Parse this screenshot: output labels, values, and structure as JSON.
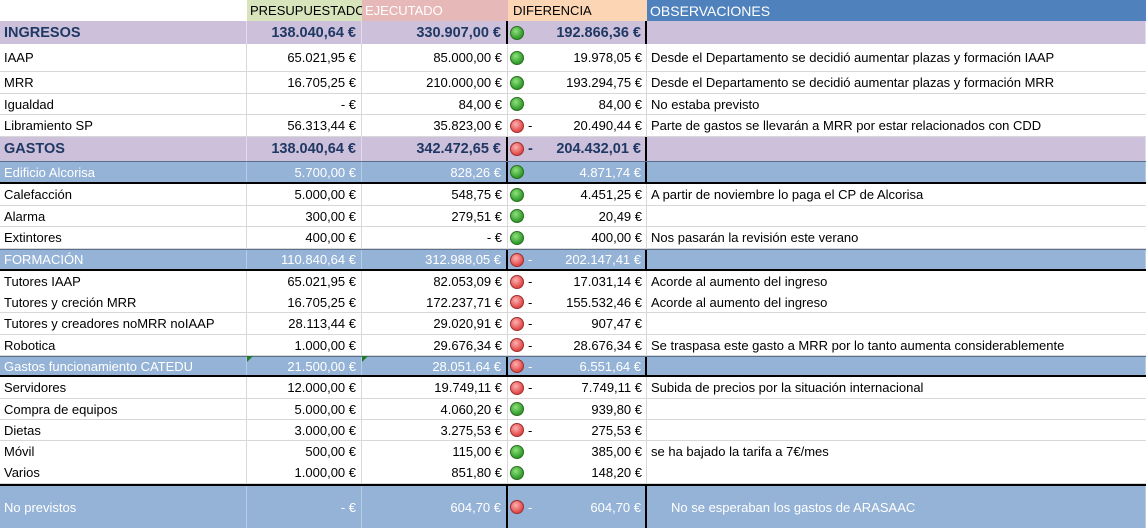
{
  "header": {
    "col_concept": "",
    "col_budget": "PRESUPUESTADO",
    "col_executed": "EJECUTADO",
    "col_difference": "DIFERENCIA",
    "col_notes": "OBSERVACIONES"
  },
  "rows": [
    {
      "type": "section",
      "concept": "INGRESOS",
      "budget": "138.040,64 €",
      "executed": "330.907,00 €",
      "status": "green",
      "sign": "",
      "difference": "192.866,36 €",
      "notes": ""
    },
    {
      "type": "item",
      "concept": "IAAP",
      "budget": "65.021,95 €",
      "executed": "85.000,00 €",
      "status": "green",
      "sign": "",
      "difference": "19.978,05 €",
      "notes": "Desde el Departamento se decidió aumentar plazas y formación IAAP"
    },
    {
      "type": "item",
      "concept": "MRR",
      "budget": "16.705,25 €",
      "executed": "210.000,00 €",
      "status": "green",
      "sign": "",
      "difference": "193.294,75 €",
      "notes": "Desde el Departamento se decidió aumentar plazas y formación MRR"
    },
    {
      "type": "item",
      "concept": "Igualdad",
      "budget": "-     €",
      "executed": "84,00 €",
      "status": "green",
      "sign": "",
      "difference": "84,00 €",
      "notes": "No estaba previsto"
    },
    {
      "type": "item",
      "concept": "Libramiento SP",
      "budget": "56.313,44 €",
      "executed": "35.823,00 €",
      "status": "red",
      "sign": "-",
      "difference": "20.490,44 €",
      "notes": "Parte de gastos se llevarán a MRR por estar relacionados con CDD"
    },
    {
      "type": "section",
      "concept": "GASTOS",
      "budget": "138.040,64 €",
      "executed": "342.472,65 €",
      "status": "red",
      "sign": "-",
      "difference": "204.432,01 €",
      "notes": ""
    },
    {
      "type": "group",
      "concept": "Edificio Alcorisa",
      "budget": "5.700,00 €",
      "executed": "828,26 €",
      "status": "green",
      "sign": "",
      "difference": "4.871,74 €",
      "notes": ""
    },
    {
      "type": "item",
      "concept": "Calefacción",
      "budget": "5.000,00 €",
      "executed": "548,75 €",
      "status": "green",
      "sign": "",
      "difference": "4.451,25 €",
      "notes": "A partir de noviembre lo paga el CP de Alcorisa"
    },
    {
      "type": "item",
      "concept": "Alarma",
      "budget": "300,00 €",
      "executed": "279,51 €",
      "status": "green",
      "sign": "",
      "difference": "20,49 €",
      "notes": ""
    },
    {
      "type": "item",
      "concept": "Extintores",
      "budget": "400,00 €",
      "executed": "-     €",
      "status": "green",
      "sign": "",
      "difference": "400,00 €",
      "notes": "Nos pasarán la revisión este verano"
    },
    {
      "type": "group",
      "concept": "FORMACIÓN",
      "budget": "110.840,64 €",
      "executed": "312.988,05 €",
      "status": "red",
      "sign": "-",
      "difference": "202.147,41 €",
      "notes": ""
    },
    {
      "type": "item",
      "concept": "Tutores IAAP",
      "budget": "65.021,95 €",
      "executed": "82.053,09 €",
      "status": "red",
      "sign": "-",
      "difference": "17.031,14 €",
      "notes": "Acorde al aumento del ingreso"
    },
    {
      "type": "item",
      "concept": "Tutores y creción MRR",
      "budget": "16.705,25 €",
      "executed": "172.237,71 €",
      "status": "red",
      "sign": "-",
      "difference": "155.532,46 €",
      "notes": "Acorde al aumento del ingreso"
    },
    {
      "type": "item",
      "concept": "Tutores y creadores noMRR noIAAP",
      "budget": "28.113,44 €",
      "executed": "29.020,91 €",
      "status": "red",
      "sign": "-",
      "difference": "907,47 €",
      "notes": ""
    },
    {
      "type": "item",
      "concept": "Robotica",
      "budget": "1.000,00 €",
      "executed": "29.676,34 €",
      "status": "red",
      "sign": "-",
      "difference": "28.676,34 €",
      "notes": "Se traspasa este gasto a MRR por lo tanto aumenta considerablemente"
    },
    {
      "type": "group",
      "concept": "Gastos funcionamiento CATEDU",
      "budget": "21.500,00 €",
      "executed": "28.051,64 €",
      "status": "red",
      "sign": "-",
      "difference": "6.551,64 €",
      "notes": ""
    },
    {
      "type": "item",
      "concept": "Servidores",
      "budget": "12.000,00 €",
      "executed": "19.749,11 €",
      "status": "red",
      "sign": "-",
      "difference": "7.749,11 €",
      "notes": "Subida de precios por la situación internacional"
    },
    {
      "type": "item",
      "concept": "Compra de equipos",
      "budget": "5.000,00 €",
      "executed": "4.060,20 €",
      "status": "green",
      "sign": "",
      "difference": "939,80 €",
      "notes": ""
    },
    {
      "type": "item",
      "concept": "Dietas",
      "budget": "3.000,00 €",
      "executed": "3.275,53 €",
      "status": "red",
      "sign": "-",
      "difference": "275,53 €",
      "notes": ""
    },
    {
      "type": "item",
      "concept": "Móvil",
      "budget": "500,00 €",
      "executed": "115,00 €",
      "status": "green",
      "sign": "",
      "difference": "385,00 €",
      "notes": "se ha bajado la tarifa a 7€/mes"
    },
    {
      "type": "item",
      "concept": "Varios",
      "budget": "1.000,00 €",
      "executed": "851,80 €",
      "status": "green",
      "sign": "",
      "difference": "148,20 €",
      "notes": ""
    },
    {
      "type": "big",
      "concept": "No previstos",
      "budget": "-     €",
      "executed": "604,70 €",
      "status": "red",
      "sign": "-",
      "difference": "604,70 €",
      "notes": "No se esperaban los gastos de ARASAAC"
    }
  ],
  "status_colors": {
    "green": "#3aa335",
    "red": "#e85c5c"
  }
}
